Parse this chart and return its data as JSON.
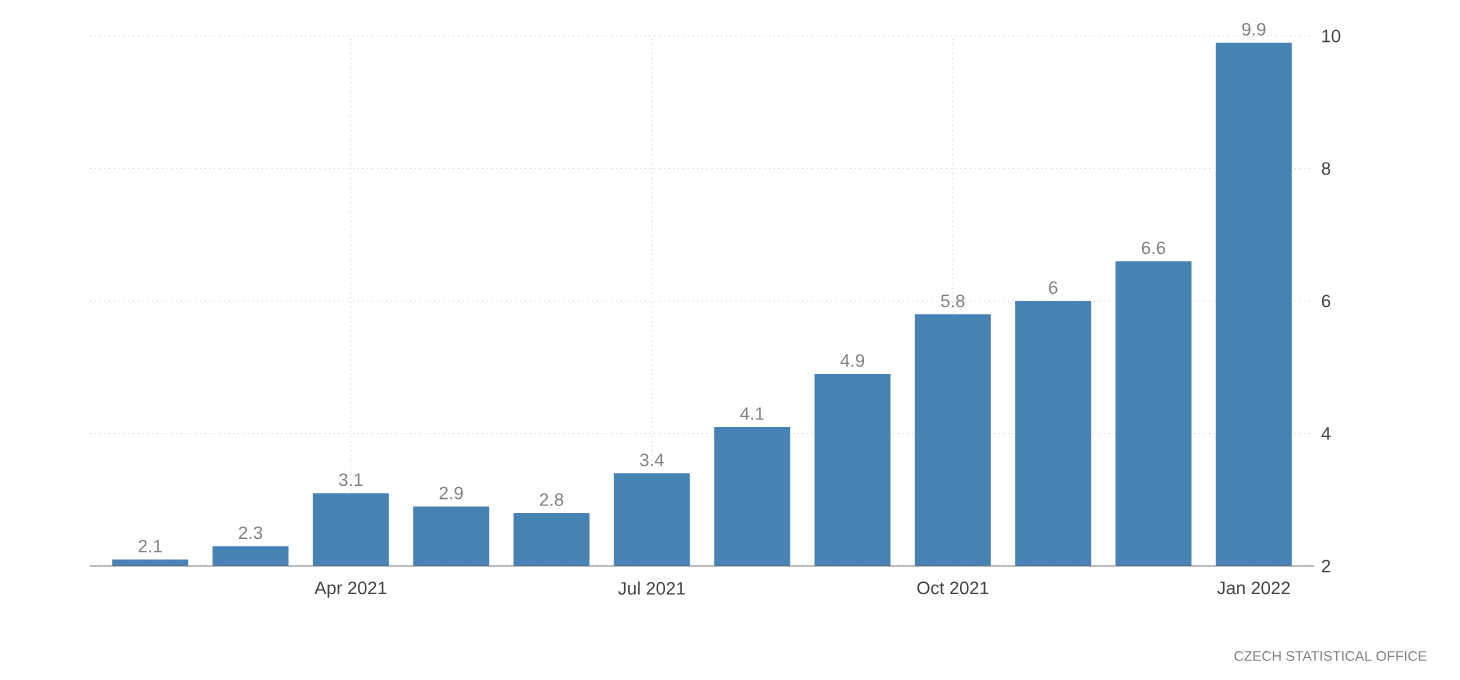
{
  "chart_data": {
    "type": "bar",
    "categories": [
      null,
      null,
      "Apr 2021",
      null,
      null,
      "Jul 2021",
      null,
      null,
      "Oct 2021",
      null,
      null,
      "Jan 2022"
    ],
    "values": [
      2.1,
      2.3,
      3.1,
      2.9,
      2.8,
      3.4,
      4.1,
      4.9,
      5.8,
      6,
      6.6,
      9.9
    ],
    "color": "#4682b4",
    "ylim": [
      2,
      10
    ],
    "yticks": [
      2,
      4,
      6,
      8,
      10
    ],
    "grid": true,
    "data_labels": true,
    "annotations": [
      "CZECH STATISTICAL OFFICE"
    ]
  }
}
